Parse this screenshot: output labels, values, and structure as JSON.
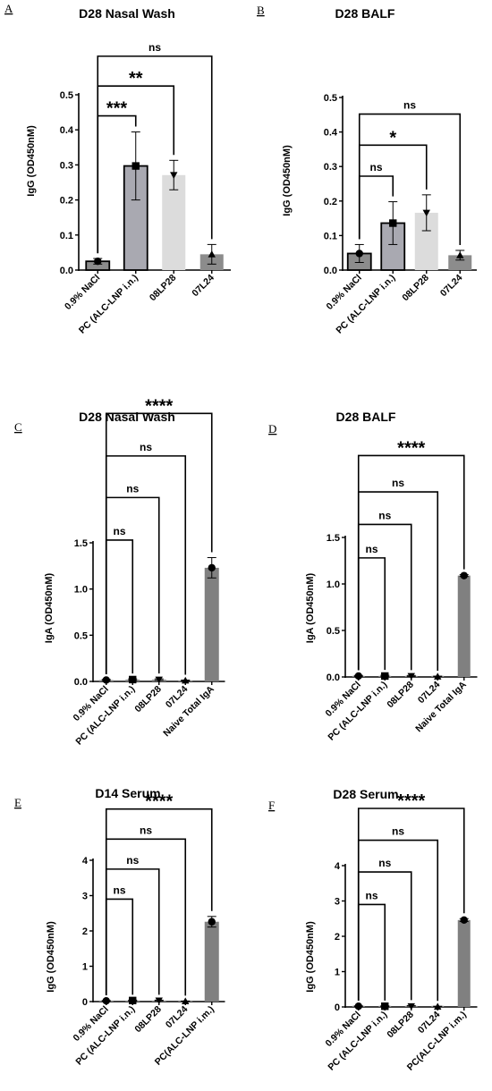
{
  "colors": {
    "dark_gray": "#8c8c8c",
    "mid_gray": "#a9a9b1",
    "light_gray": "#dcdcdc",
    "naive_gray": "#808080",
    "stroke": "#000000"
  },
  "chart_data": [
    {
      "panel": "A",
      "type": "bar",
      "title": "D28 Nasal Wash",
      "ylabel": "IgG (OD450nM)",
      "ylim": [
        0,
        0.5
      ],
      "yticks": [
        "0.0",
        "0.1",
        "0.2",
        "0.3",
        "0.4",
        "0.5"
      ],
      "categories": [
        "0.9% NaCl",
        "PC (ALC-LNP i.n.)",
        "08LP28",
        "07L24"
      ],
      "values": [
        0.025,
        0.297,
        0.271,
        0.045
      ],
      "errors": [
        0.008,
        0.097,
        0.042,
        0.028
      ],
      "markers": [
        "circle",
        "square",
        "triangle-down",
        "triangle-up"
      ],
      "bar_colors": [
        "dark_gray",
        "mid_gray",
        "light_gray",
        "dark_gray"
      ],
      "bar_outline": [
        true,
        true,
        false,
        false
      ],
      "comparisons": [
        {
          "from": 0,
          "to": 1,
          "label": "***",
          "level": 0.44
        },
        {
          "from": 0,
          "to": 2,
          "label": "**",
          "level": 0.525
        },
        {
          "from": 0,
          "to": 3,
          "label": "ns",
          "level": 0.61
        }
      ]
    },
    {
      "panel": "B",
      "type": "bar",
      "title": "D28 BALF",
      "ylabel": "IgG (OD450nM)",
      "ylim": [
        0,
        0.5
      ],
      "yticks": [
        "0.0",
        "0.1",
        "0.2",
        "0.3",
        "0.4",
        "0.5"
      ],
      "categories": [
        "0.9% NaCl",
        "PC (ALC-LNP i.n.)",
        "08LP28",
        "07L24"
      ],
      "values": [
        0.048,
        0.136,
        0.166,
        0.043
      ],
      "errors": [
        0.026,
        0.062,
        0.052,
        0.014
      ],
      "markers": [
        "circle",
        "square",
        "triangle-down",
        "triangle-up"
      ],
      "bar_colors": [
        "dark_gray",
        "mid_gray",
        "light_gray",
        "dark_gray"
      ],
      "bar_outline": [
        true,
        true,
        false,
        false
      ],
      "comparisons": [
        {
          "from": 0,
          "to": 1,
          "label": "ns",
          "level": 0.272
        },
        {
          "from": 0,
          "to": 2,
          "label": "*",
          "level": 0.362
        },
        {
          "from": 0,
          "to": 3,
          "label": "ns",
          "level": 0.452
        }
      ]
    },
    {
      "panel": "C",
      "type": "bar",
      "title": "D28 Nasal Wash",
      "ylabel": "IgA (OD450nM)",
      "ylim": [
        0,
        1.5
      ],
      "yticks": [
        "0.0",
        "0.5",
        "1.0",
        "1.5"
      ],
      "categories": [
        "0.9% NaCl",
        "PC (ALC-LNP i.n.)",
        "08LP28",
        "07L24",
        "Naive Total IgA"
      ],
      "values": [
        0.015,
        0.02,
        0.02,
        0.01,
        1.23
      ],
      "errors": [
        0.006,
        0.008,
        0.008,
        0.005,
        0.11
      ],
      "markers": [
        "circle",
        "square",
        "triangle-down",
        "triangle-up",
        "circle"
      ],
      "bar_colors": [
        "dark_gray",
        "dark_gray",
        "dark_gray",
        "dark_gray",
        "naive_gray"
      ],
      "bar_outline": [
        false,
        false,
        false,
        false,
        false
      ],
      "comparisons": [
        {
          "from": 0,
          "to": 1,
          "label": "ns",
          "level": 1.53
        },
        {
          "from": 0,
          "to": 2,
          "label": "ns",
          "level": 1.99
        },
        {
          "from": 0,
          "to": 3,
          "label": "ns",
          "level": 2.44
        },
        {
          "from": 0,
          "to": 4,
          "label": "****",
          "level": 2.9
        }
      ]
    },
    {
      "panel": "D",
      "type": "bar",
      "title": "D28 BALF",
      "ylabel": "IgA (OD450nM)",
      "ylim": [
        0,
        1.5
      ],
      "yticks": [
        "0.0",
        "0.5",
        "1.0",
        "1.5"
      ],
      "categories": [
        "0.9% NaCl",
        "PC (ALC-LNP i.n.)",
        "08LP28",
        "07L24",
        "Naive Total IgA"
      ],
      "values": [
        0.01,
        0.01,
        0.01,
        0.005,
        1.09
      ],
      "errors": [
        0.006,
        0.008,
        0.006,
        0.004,
        0.01
      ],
      "markers": [
        "circle",
        "square",
        "triangle-down",
        "triangle-up",
        "circle"
      ],
      "bar_colors": [
        "dark_gray",
        "dark_gray",
        "dark_gray",
        "dark_gray",
        "naive_gray"
      ],
      "bar_outline": [
        false,
        false,
        false,
        false,
        false
      ],
      "comparisons": [
        {
          "from": 0,
          "to": 1,
          "label": "ns",
          "level": 1.28
        },
        {
          "from": 0,
          "to": 2,
          "label": "ns",
          "level": 1.64
        },
        {
          "from": 0,
          "to": 3,
          "label": "ns",
          "level": 1.99
        },
        {
          "from": 0,
          "to": 4,
          "label": "****",
          "level": 2.38
        }
      ]
    },
    {
      "panel": "E",
      "type": "bar",
      "title": "D14 Serum",
      "ylabel": "IgG (OD450nM)",
      "ylim": [
        0,
        4
      ],
      "yticks": [
        "0",
        "1",
        "2",
        "3",
        "4"
      ],
      "categories": [
        "0.9% NaCl",
        "PC (ALC-LNP i.n.)",
        "08LP28",
        "07L24",
        "PC(ALC-LNP i.m.)"
      ],
      "values": [
        0.02,
        0.03,
        0.03,
        0.01,
        2.26
      ],
      "errors": [
        0.01,
        0.01,
        0.01,
        0.005,
        0.15
      ],
      "markers": [
        "circle",
        "square",
        "triangle-down",
        "triangle-up",
        "circle"
      ],
      "bar_colors": [
        "dark_gray",
        "dark_gray",
        "dark_gray",
        "dark_gray",
        "naive_gray"
      ],
      "bar_outline": [
        false,
        false,
        false,
        false,
        false
      ],
      "comparisons": [
        {
          "from": 0,
          "to": 1,
          "label": "ns",
          "level": 2.9
        },
        {
          "from": 0,
          "to": 2,
          "label": "ns",
          "level": 3.75
        },
        {
          "from": 0,
          "to": 3,
          "label": "ns",
          "level": 4.6
        },
        {
          "from": 0,
          "to": 4,
          "label": "****",
          "level": 5.45
        }
      ]
    },
    {
      "panel": "F",
      "type": "bar",
      "title": "D28 Serum",
      "ylabel": "IgG (OD450nM)",
      "ylim": [
        0,
        4
      ],
      "yticks": [
        "0",
        "1",
        "2",
        "3",
        "4"
      ],
      "categories": [
        "0.9% NaCl",
        "PC (ALC-LNP i.n.)",
        "08LP28",
        "07L24",
        "PC(ALC-LNP i.m.)"
      ],
      "values": [
        0.02,
        0.02,
        0.02,
        0.01,
        2.46
      ],
      "errors": [
        0.01,
        0.01,
        0.02,
        0.01,
        0.04
      ],
      "markers": [
        "circle",
        "square",
        "triangle-down",
        "triangle-up",
        "circle"
      ],
      "bar_colors": [
        "dark_gray",
        "dark_gray",
        "dark_gray",
        "dark_gray",
        "naive_gray"
      ],
      "bar_outline": [
        false,
        false,
        false,
        false,
        false
      ],
      "comparisons": [
        {
          "from": 0,
          "to": 1,
          "label": "ns",
          "level": 2.9
        },
        {
          "from": 0,
          "to": 2,
          "label": "ns",
          "level": 3.82
        },
        {
          "from": 0,
          "to": 3,
          "label": "ns",
          "level": 4.72
        },
        {
          "from": 0,
          "to": 4,
          "label": "****",
          "level": 5.62
        }
      ]
    }
  ]
}
